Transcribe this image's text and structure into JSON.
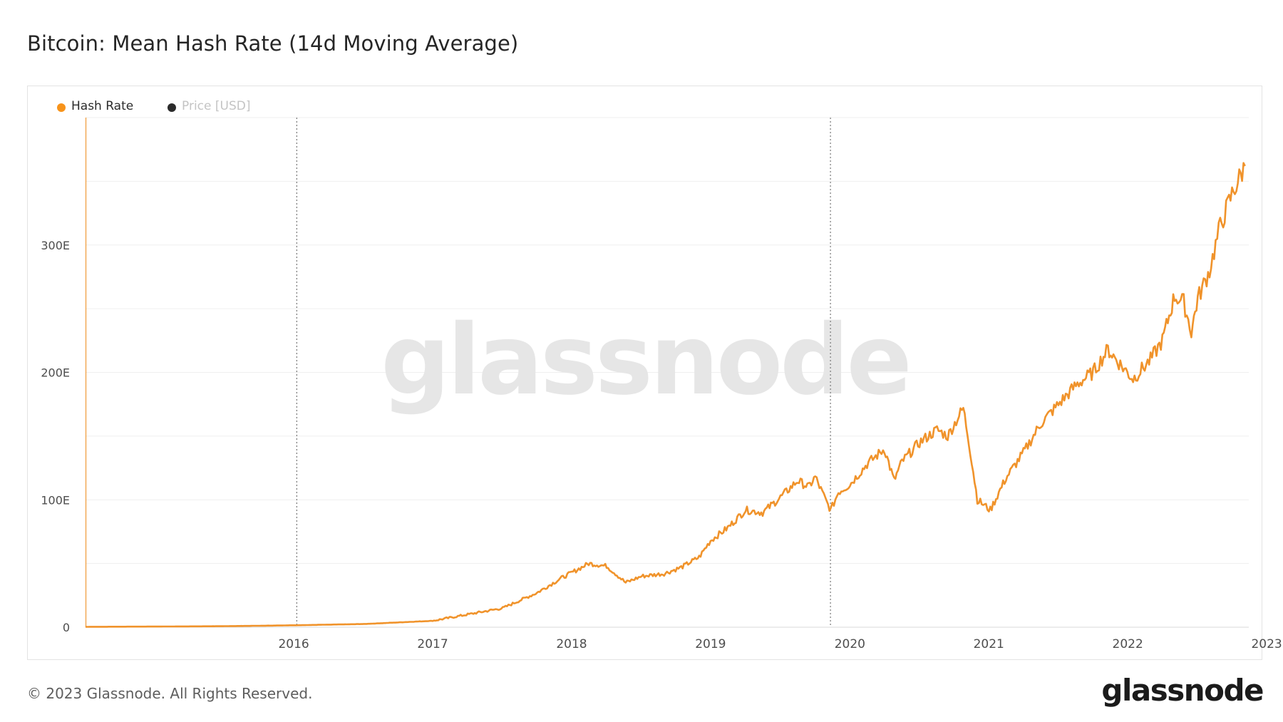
{
  "header": {
    "title": "Bitcoin: Mean Hash Rate (14d Moving Average)"
  },
  "legend": {
    "items": [
      {
        "label": "Hash Rate",
        "color": "#f7931a",
        "active": true
      },
      {
        "label": "Price [USD]",
        "color": "#2b2b2b",
        "active": false
      }
    ]
  },
  "watermark": {
    "text": "glassnode"
  },
  "footer": {
    "copyright": "© 2023 Glassnode. All Rights Reserved.",
    "brand": "glassnode"
  },
  "colors": {
    "line": "#f0932b",
    "grid": "#efefef",
    "axis_text": "#4d4d4d",
    "marker": "#777777"
  },
  "chart_data": {
    "type": "line",
    "title": "Bitcoin: Mean Hash Rate (14d Moving Average)",
    "xlabel": "",
    "ylabel": "",
    "x_ticks": [
      "2016",
      "2017",
      "2018",
      "2019",
      "2020",
      "2021",
      "2022",
      "2023"
    ],
    "y_ticks": [
      "0",
      "100E",
      "200E",
      "300E"
    ],
    "ylim": [
      0,
      400
    ],
    "y_unit": "EH/s",
    "grid": true,
    "legend_position": "top-left",
    "vertical_markers": [
      "2016-07-09",
      "2020-05-11"
    ],
    "series": [
      {
        "name": "Hash Rate",
        "x": [
          "2015-01-01",
          "2015-07-01",
          "2016-01-01",
          "2016-07-01",
          "2017-01-01",
          "2017-07-01",
          "2017-10-01",
          "2018-01-01",
          "2018-04-01",
          "2018-06-01",
          "2018-08-15",
          "2018-10-01",
          "2018-11-20",
          "2019-01-01",
          "2019-03-01",
          "2019-04-15",
          "2019-06-01",
          "2019-07-01",
          "2019-08-15",
          "2019-10-01",
          "2019-11-15",
          "2020-01-01",
          "2020-02-15",
          "2020-03-15",
          "2020-04-01",
          "2020-05-01",
          "2020-05-12",
          "2020-06-01",
          "2020-07-01",
          "2020-08-15",
          "2020-09-30",
          "2020-10-25",
          "2020-11-15",
          "2020-12-31",
          "2021-02-15",
          "2021-03-15",
          "2021-04-25",
          "2021-05-10",
          "2021-06-01",
          "2021-07-05",
          "2021-08-15",
          "2021-09-30",
          "2021-11-15",
          "2021-12-31",
          "2022-02-15",
          "2022-04-01",
          "2022-05-10",
          "2022-06-15",
          "2022-07-15",
          "2022-08-30",
          "2022-09-30",
          "2022-11-01",
          "2022-11-25",
          "2022-12-15",
          "2023-01-01",
          "2023-02-01",
          "2023-03-01",
          "2023-04-01",
          "2023-05-05"
        ],
        "values": [
          0.3,
          0.5,
          0.8,
          1.5,
          2.5,
          5,
          10,
          15,
          27,
          38,
          50,
          48,
          35,
          40,
          42,
          47,
          55,
          68,
          78,
          92,
          90,
          102,
          115,
          110,
          118,
          98,
          92,
          106,
          112,
          128,
          140,
          115,
          130,
          145,
          155,
          150,
          172,
          145,
          100,
          92,
          117,
          137,
          160,
          175,
          190,
          200,
          218,
          205,
          195,
          210,
          225,
          260,
          255,
          232,
          258,
          280,
          315,
          340,
          362
        ]
      }
    ]
  }
}
